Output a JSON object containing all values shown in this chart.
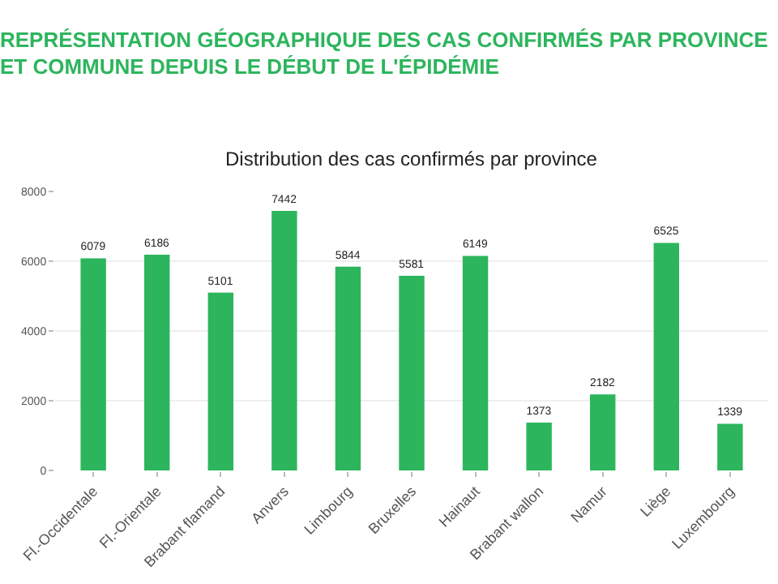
{
  "chart_data": {
    "type": "bar",
    "title": "REPRÉSENTATION GÉOGRAPHIQUE DES CAS CONFIRMÉS PAR PROVINCE\nET COMMUNE DEPUIS LE DÉBUT DE L'ÉPIDÉMIE",
    "subtitle": "Distribution des cas confirmés par province",
    "categories": [
      "Fl.-Occidentale",
      "Fl.-Orientale",
      "Brabant flamand",
      "Anvers",
      "Limbourg",
      "Bruxelles",
      "Hainaut",
      "Brabant wallon",
      "Namur",
      "Liège",
      "Luxembourg"
    ],
    "values": [
      6079,
      6186,
      5101,
      7442,
      5844,
      5581,
      6149,
      1373,
      2182,
      6525,
      1339
    ],
    "color": "#2db55d",
    "ylim": [
      0,
      8000
    ],
    "yticks": [
      0,
      2000,
      4000,
      6000,
      8000
    ],
    "grid": "y",
    "data_labels": true,
    "legend": false
  }
}
